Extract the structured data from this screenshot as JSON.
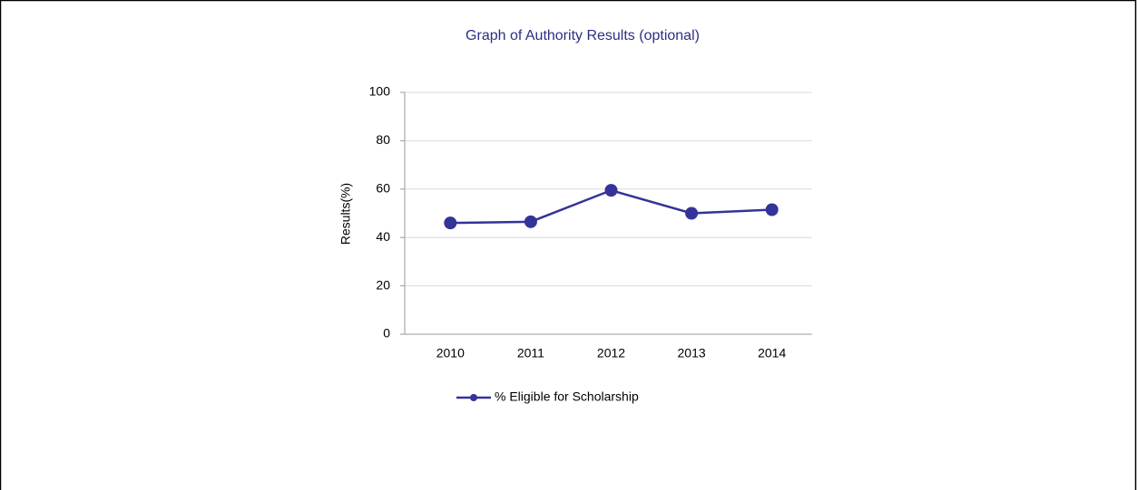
{
  "chart_data": {
    "type": "line",
    "title": "Graph of Authority Results (optional)",
    "y_label": "Results(%)",
    "categories": [
      "2010",
      "2011",
      "2012",
      "2013",
      "2014"
    ],
    "series": [
      {
        "name": "% Eligible for Scholarship",
        "color": "#333399",
        "values": [
          46,
          46.5,
          59.5,
          50,
          51.5
        ]
      }
    ],
    "ylim": [
      0,
      100
    ],
    "yticks": [
      0,
      20,
      40,
      60,
      80,
      100
    ],
    "grid": true,
    "legend": "bottom"
  }
}
